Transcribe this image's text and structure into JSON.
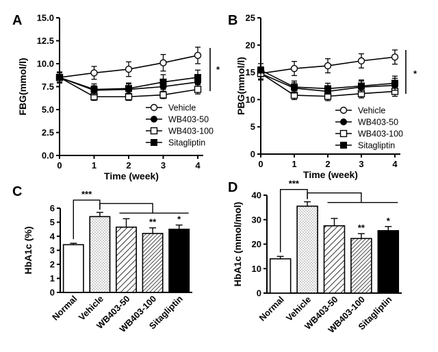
{
  "chart_data": [
    {
      "panel": "A",
      "type": "line",
      "xlabel": "Time (week)",
      "ylabel": "FBG(mmol/l)",
      "x": [
        0,
        1,
        2,
        3,
        4
      ],
      "xticks": [
        "0",
        "1",
        "2",
        "3",
        "4"
      ],
      "ylim": [
        0,
        15
      ],
      "yticks": [
        "0.0",
        "2.5",
        "5.0",
        "7.5",
        "10.0",
        "12.5",
        "15.0"
      ],
      "series": [
        {
          "name": "Vehicle",
          "marker": "open-circle",
          "values": [
            8.5,
            9.0,
            9.4,
            10.1,
            10.9
          ],
          "errors": [
            0.6,
            0.7,
            0.8,
            0.9,
            0.9
          ]
        },
        {
          "name": "WB403-50",
          "marker": "filled-circle",
          "values": [
            8.5,
            7.1,
            7.2,
            7.5,
            8.0
          ],
          "errors": [
            0.6,
            0.5,
            0.6,
            0.6,
            0.7
          ]
        },
        {
          "name": "WB403-100",
          "marker": "open-square",
          "values": [
            8.5,
            6.4,
            6.4,
            6.6,
            7.2
          ],
          "errors": [
            0.5,
            0.4,
            0.4,
            0.4,
            0.5
          ]
        },
        {
          "name": "Sitagliptin",
          "marker": "filled-square",
          "values": [
            8.5,
            7.2,
            7.3,
            8.0,
            8.5
          ],
          "errors": [
            0.5,
            0.6,
            0.6,
            0.8,
            0.8
          ]
        }
      ],
      "annotation": "*"
    },
    {
      "panel": "B",
      "type": "line",
      "xlabel": "Time (week)",
      "ylabel": "PBG(mmol/l)",
      "x": [
        0,
        1,
        2,
        3,
        4
      ],
      "xticks": [
        "0",
        "1",
        "2",
        "3",
        "4"
      ],
      "ylim": [
        0,
        25
      ],
      "yticks": [
        "0",
        "5",
        "10",
        "15",
        "20",
        "25"
      ],
      "series": [
        {
          "name": "Vehicle",
          "marker": "open-circle",
          "values": [
            14.8,
            15.7,
            16.2,
            17.1,
            17.8
          ],
          "errors": [
            1.2,
            1.3,
            1.3,
            1.3,
            1.3
          ]
        },
        {
          "name": "WB403-50",
          "marker": "filled-circle",
          "values": [
            14.8,
            12.1,
            11.5,
            12.3,
            12.6
          ],
          "errors": [
            1.2,
            1.0,
            1.0,
            1.1,
            1.3
          ]
        },
        {
          "name": "WB403-100",
          "marker": "open-square",
          "values": [
            14.8,
            10.8,
            10.6,
            11.1,
            11.5
          ],
          "errors": [
            1.0,
            0.8,
            0.8,
            0.8,
            0.9
          ]
        },
        {
          "name": "Sitagliptin",
          "marker": "filled-square",
          "values": [
            15.4,
            12.3,
            12.0,
            12.5,
            13.0
          ],
          "errors": [
            1.2,
            1.1,
            1.0,
            1.1,
            1.3
          ]
        }
      ],
      "annotation": "*"
    },
    {
      "panel": "C",
      "type": "bar",
      "ylabel": "HbA1c (%)",
      "ylim": [
        0,
        6
      ],
      "yticks": [
        "0",
        "1",
        "2",
        "3",
        "4",
        "5",
        "6"
      ],
      "categories": [
        "Normal",
        "Vehicle",
        "WB403-50",
        "WB403-100",
        "Sitagliptin"
      ],
      "values": [
        3.4,
        5.4,
        4.65,
        4.2,
        4.5
      ],
      "errors": [
        0.1,
        0.3,
        0.6,
        0.4,
        0.3
      ],
      "fills": [
        "white",
        "dotted",
        "hatch",
        "hatch-dense",
        "black"
      ],
      "bar_labels": [
        "",
        "",
        "",
        "**",
        "*"
      ],
      "bracket_label": "***"
    },
    {
      "panel": "D",
      "type": "bar",
      "ylabel": "HbA1c (mmol/mol)",
      "ylim": [
        0,
        40
      ],
      "yticks": [
        "0",
        "10",
        "20",
        "30",
        "40"
      ],
      "categories": [
        "Normal",
        "Vehicle",
        "WB403-50",
        "WB403-100",
        "Sitagliptin"
      ],
      "values": [
        14.0,
        35.5,
        27.5,
        22.3,
        25.5
      ],
      "errors": [
        1.0,
        1.8,
        3.0,
        2.0,
        1.7
      ],
      "fills": [
        "white",
        "dotted",
        "hatch",
        "hatch-dense",
        "black"
      ],
      "bar_labels": [
        "",
        "",
        "",
        "**",
        "*"
      ],
      "bracket_label": "***"
    }
  ]
}
